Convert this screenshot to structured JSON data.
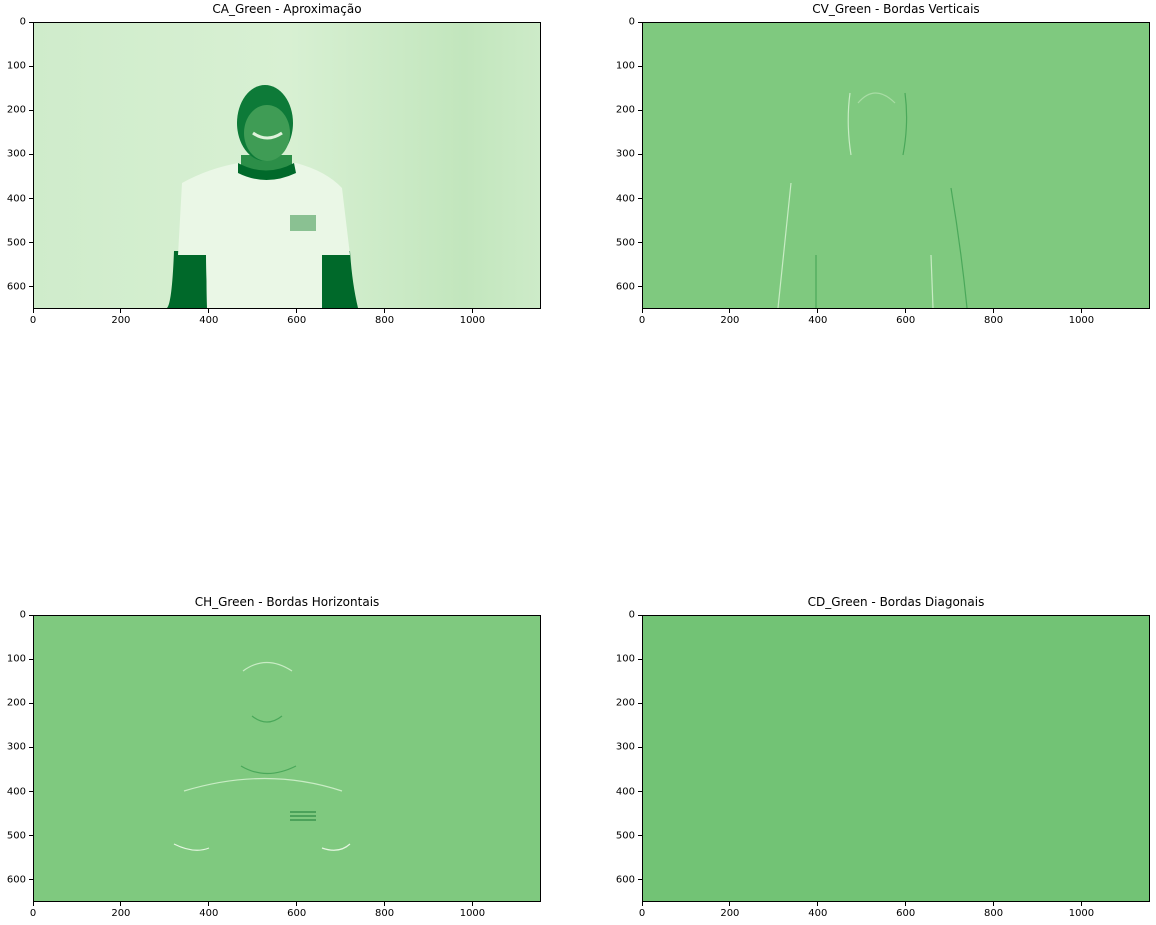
{
  "colors": {
    "green_dark": "#00692a",
    "green_mid": "#7fc97f",
    "green_light": "#cdebc8",
    "green_diag": "#72c375"
  },
  "chart_data": [
    {
      "type": "heatmap",
      "title": "CA_Green - Aproximação",
      "xlim": [
        0,
        1156
      ],
      "ylim": [
        650,
        0
      ],
      "xticks": [
        "0",
        "200",
        "400",
        "600",
        "800",
        "1000"
      ],
      "yticks": [
        "0",
        "100",
        "200",
        "300",
        "400",
        "500",
        "600"
      ],
      "colormap": "Greens",
      "grid": false
    },
    {
      "type": "heatmap",
      "title": "CV_Green - Bordas Verticais",
      "xlim": [
        0,
        1156
      ],
      "ylim": [
        650,
        0
      ],
      "xticks": [
        "0",
        "200",
        "400",
        "600",
        "800",
        "1000"
      ],
      "yticks": [
        "0",
        "100",
        "200",
        "300",
        "400",
        "500",
        "600"
      ],
      "colormap": "Greens",
      "grid": false
    },
    {
      "type": "heatmap",
      "title": "CH_Green - Bordas Horizontais",
      "xlim": [
        0,
        1156
      ],
      "ylim": [
        650,
        0
      ],
      "xticks": [
        "0",
        "200",
        "400",
        "600",
        "800",
        "1000"
      ],
      "yticks": [
        "0",
        "100",
        "200",
        "300",
        "400",
        "500",
        "600"
      ],
      "colormap": "Greens",
      "grid": false
    },
    {
      "type": "heatmap",
      "title": "CD_Green - Bordas Diagonais",
      "xlim": [
        0,
        1156
      ],
      "ylim": [
        650,
        0
      ],
      "xticks": [
        "0",
        "200",
        "400",
        "600",
        "800",
        "1000"
      ],
      "yticks": [
        "0",
        "100",
        "200",
        "300",
        "400",
        "500",
        "600"
      ],
      "colormap": "Greens",
      "grid": false
    }
  ]
}
